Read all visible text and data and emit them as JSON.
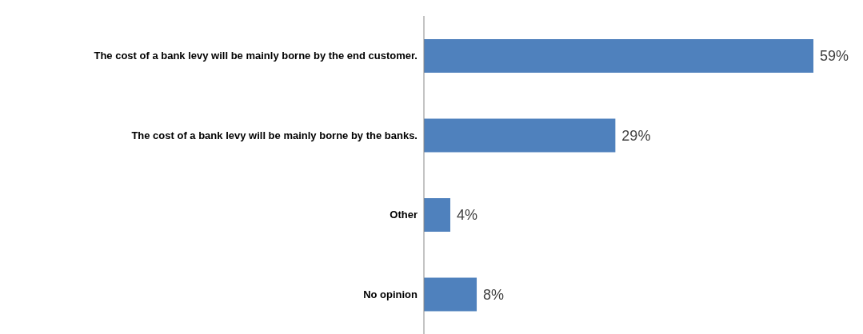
{
  "chart_data": {
    "type": "bar",
    "orientation": "horizontal",
    "categories": [
      "The cost of a bank levy will be mainly borne by the end customer.",
      "The cost of a bank levy will be mainly borne by the banks.",
      "Other",
      "No opinion"
    ],
    "values": [
      59,
      29,
      4,
      8
    ],
    "value_labels": [
      "59%",
      "29%",
      "4%",
      "8%"
    ],
    "color": "#4f81bd",
    "grid": false,
    "legend": false
  }
}
